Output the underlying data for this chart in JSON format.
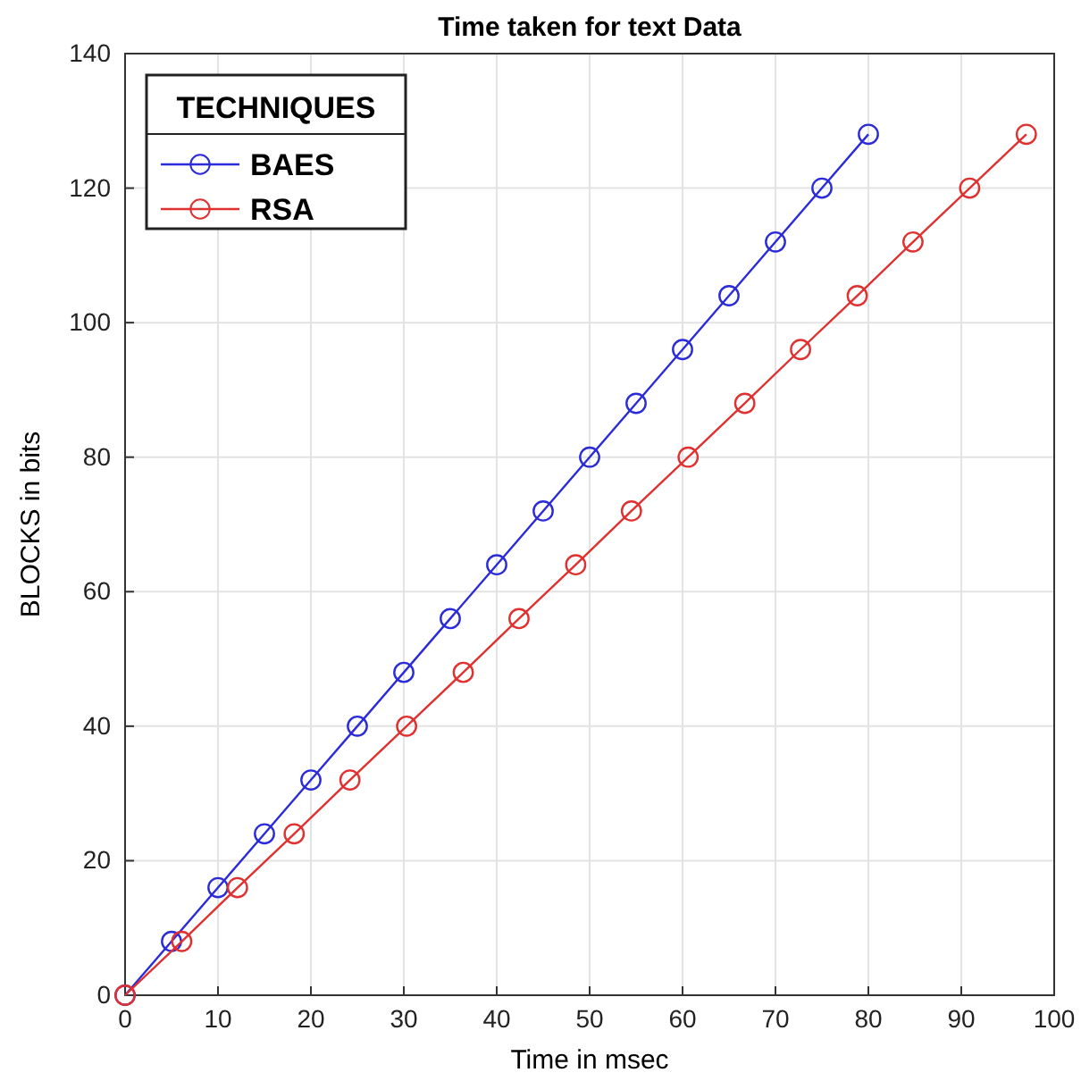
{
  "chart_data": {
    "type": "line",
    "title": "Time taken for text Data",
    "xlabel": "Time in msec",
    "ylabel": "BLOCKS in bits",
    "legend_title": "TECHNIQUES",
    "series": [
      {
        "name": "BAES",
        "color": "#2b2bd9",
        "x": [
          0,
          5,
          10,
          15,
          20,
          25,
          30,
          35,
          40,
          45,
          50,
          55,
          60,
          65,
          70,
          75,
          80
        ],
        "values": [
          0,
          8,
          16,
          24,
          32,
          40,
          48,
          56,
          64,
          72,
          80,
          88,
          96,
          104,
          112,
          120,
          128
        ]
      },
      {
        "name": "RSA",
        "color": "#e03030",
        "x": [
          0,
          6.1,
          12.1,
          18.2,
          24.2,
          30.3,
          36.4,
          42.4,
          48.5,
          54.5,
          60.6,
          66.7,
          72.7,
          78.8,
          84.8,
          90.9,
          97
        ],
        "values": [
          0,
          8,
          16,
          24,
          32,
          40,
          48,
          56,
          64,
          72,
          80,
          88,
          96,
          104,
          112,
          120,
          128
        ]
      }
    ],
    "xlim": [
      0,
      100
    ],
    "xticks": [
      0,
      10,
      20,
      30,
      40,
      50,
      60,
      70,
      80,
      90,
      100
    ],
    "ylim": [
      0,
      140
    ],
    "yticks": [
      0,
      20,
      40,
      60,
      80,
      100,
      120,
      140
    ],
    "grid": true,
    "legend": "top left",
    "marker": "circle",
    "line_style": "solid"
  }
}
